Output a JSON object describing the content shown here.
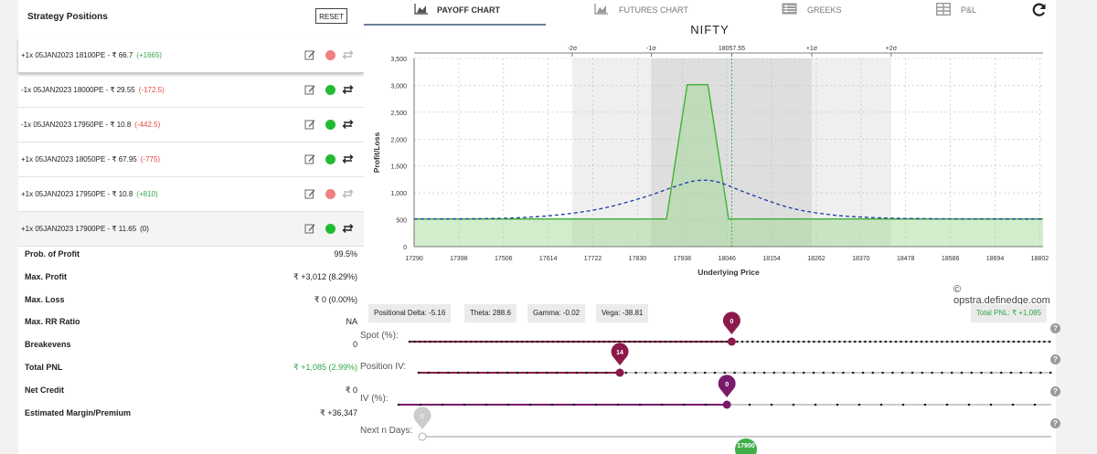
{
  "left_panel": {
    "title": "Strategy Positions",
    "reset_label": "RESET",
    "positions": [
      {
        "text": "+1x  05JAN2023  18100PE  - ₹ 66.7",
        "pnl": "(+1665)",
        "pnl_color": "#2ea84a",
        "dot_color": "#ee8080",
        "enabled": false
      },
      {
        "text": "-1x  05JAN2023  18000PE  - ₹ 29.55",
        "pnl": "(-172.5)",
        "pnl_color": "#e0483d",
        "dot_color": "#22bb33",
        "enabled": true
      },
      {
        "text": "-1x  05JAN2023  17950PE  - ₹ 10.8",
        "pnl": "(-442.5)",
        "pnl_color": "#e0483d",
        "dot_color": "#22bb33",
        "enabled": true
      },
      {
        "text": "+1x  05JAN2023  18050PE  - ₹ 67.95",
        "pnl": "(-775)",
        "pnl_color": "#e0483d",
        "dot_color": "#22bb33",
        "enabled": true
      },
      {
        "text": "+1x  05JAN2023  17950PE  - ₹ 10.8",
        "pnl": "(+810)",
        "pnl_color": "#2ea84a",
        "dot_color": "#ee8080",
        "enabled": false
      },
      {
        "text": "+1x  05JAN2023  17900PE  - ₹ 11.65",
        "pnl": "(0)",
        "pnl_color": "#222222",
        "dot_color": "#22bb33",
        "enabled": true
      }
    ],
    "stats": [
      {
        "label": "Prob. of Profit",
        "value": "99.5%",
        "color": "#222222"
      },
      {
        "label": "Max. Profit",
        "value": "₹ +3,012 (8.29%)",
        "color": "#222222"
      },
      {
        "label": "Max. Loss",
        "value": "₹ 0 (0.00%)",
        "color": "#222222"
      },
      {
        "label": "Max. RR Ratio",
        "value": "NA",
        "color": "#222222"
      },
      {
        "label": "Breakevens",
        "value": "0",
        "color": "#222222"
      },
      {
        "label": "Total PNL",
        "value": "₹ +1,085 (2.99%)",
        "color": "#2ea84a"
      },
      {
        "label": "Net Credit",
        "value": "₹ 0",
        "color": "#222222"
      },
      {
        "label": "Estimated Margin/Premium",
        "value": "₹ +36,347",
        "color": "#222222"
      }
    ]
  },
  "tabs": [
    {
      "label": "PAYOFF CHART",
      "icon": "area-chart-icon",
      "active": true
    },
    {
      "label": "FUTURES CHART",
      "icon": "area-chart-icon",
      "active": false
    },
    {
      "label": "GREEKS",
      "icon": "table-icon",
      "active": false
    },
    {
      "label": "P&L",
      "icon": "grid-icon",
      "active": false
    }
  ],
  "chart_title": "NIFTY",
  "copyright": "© opstra.definedge.com",
  "chart_data": {
    "type": "area",
    "title": "NIFTY",
    "xlabel": "Underlying Price",
    "ylabel": "Profit/Loss",
    "xlim": [
      17290,
      18810
    ],
    "ylim": [
      0,
      3500
    ],
    "x_ticks": [
      17290,
      17398,
      17506,
      17614,
      17722,
      17830,
      17938,
      18046,
      18154,
      18262,
      18370,
      18478,
      18586,
      18694,
      18802
    ],
    "y_ticks": [
      0,
      500,
      1000,
      1500,
      2000,
      2500,
      3000,
      3500
    ],
    "y_tick_labels": [
      "0",
      "500",
      "1,000",
      "1,500",
      "2,000",
      "2,500",
      "3,000",
      "3,500"
    ],
    "spot": 18057.55,
    "spot_label": "18057.55",
    "sigma_bands": [
      {
        "label": "-2σ",
        "x": 17672
      },
      {
        "label": "-1σ",
        "x": 17863
      },
      {
        "label": "+1σ",
        "x": 18251
      },
      {
        "label": "+2σ",
        "x": 18443
      }
    ],
    "series": [
      {
        "name": "expiry",
        "x": [
          17290,
          17900,
          17950,
          18000,
          18050,
          18810
        ],
        "y": [
          515,
          515,
          3012,
          3012,
          515,
          515
        ],
        "color": "#3fb335"
      },
      {
        "name": "target",
        "x": [
          17290,
          17450,
          17550,
          17650,
          17750,
          17850,
          17925,
          17975,
          18025,
          18100,
          18200,
          18300,
          18400,
          18500,
          18650,
          18810
        ],
        "y": [
          515,
          520,
          540,
          600,
          720,
          930,
          1130,
          1230,
          1200,
          980,
          720,
          590,
          540,
          522,
          516,
          515
        ],
        "color": "#1a3aa6"
      }
    ]
  },
  "greeks": {
    "delta": "Positional Delta: -5.16",
    "theta": "Theta: 288.6",
    "gamma": "Gamma: -0.02",
    "vega": "Vega: -38.81",
    "total_pnl": "Total PNL: ₹ +1,085"
  },
  "sliders": [
    {
      "label": "Spot (%):",
      "value": "0",
      "handle_color": "#8b1a4a",
      "value_fraction": 0.502,
      "style": "dots"
    },
    {
      "label": "Position IV:",
      "value": "14",
      "handle_color": "#8b1a4a",
      "value_fraction": 0.318,
      "style": "dots"
    },
    {
      "label": "IV (%):",
      "value": "0",
      "handle_color": "#7a1a6a",
      "value_fraction": 0.503,
      "style": "dots"
    },
    {
      "label": "Next n Days:",
      "value": "0",
      "handle_color": "#cccccc",
      "value_fraction": 0.0,
      "style": "plain",
      "marker": "17900",
      "marker_color": "#3fae49"
    }
  ]
}
